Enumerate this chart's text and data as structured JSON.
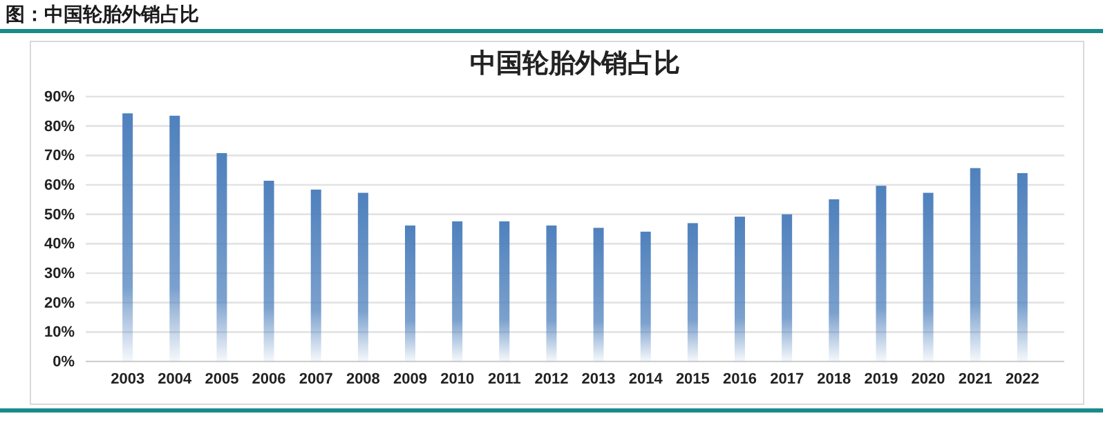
{
  "chart_data": {
    "type": "bar",
    "title": "中国轮胎外销占比",
    "annotations": [
      "图：中国轮胎外销占比"
    ],
    "categories": [
      "2003",
      "2004",
      "2005",
      "2006",
      "2007",
      "2008",
      "2009",
      "2010",
      "2011",
      "2012",
      "2013",
      "2014",
      "2015",
      "2016",
      "2017",
      "2018",
      "2019",
      "2020",
      "2021",
      "2022"
    ],
    "values": [
      84.3,
      83.5,
      70.8,
      61.4,
      58.4,
      57.3,
      46.2,
      47.6,
      47.6,
      46.2,
      45.4,
      44.1,
      47,
      49.2,
      50,
      55.1,
      59.7,
      57.3,
      65.7,
      64
    ],
    "color": "#4f81bd",
    "ylim": [
      0,
      90
    ],
    "yticks": [
      {
        "value": 0,
        "label": "0%"
      },
      {
        "value": 10,
        "label": "10%"
      },
      {
        "value": 20,
        "label": "20%"
      },
      {
        "value": 30,
        "label": "30%"
      },
      {
        "value": 40,
        "label": "40%"
      },
      {
        "value": 50,
        "label": "50%"
      },
      {
        "value": 60,
        "label": "60%"
      },
      {
        "value": 70,
        "label": "70%"
      },
      {
        "value": 80,
        "label": "80%"
      },
      {
        "value": 90,
        "label": "90%"
      }
    ],
    "grid": "y"
  }
}
